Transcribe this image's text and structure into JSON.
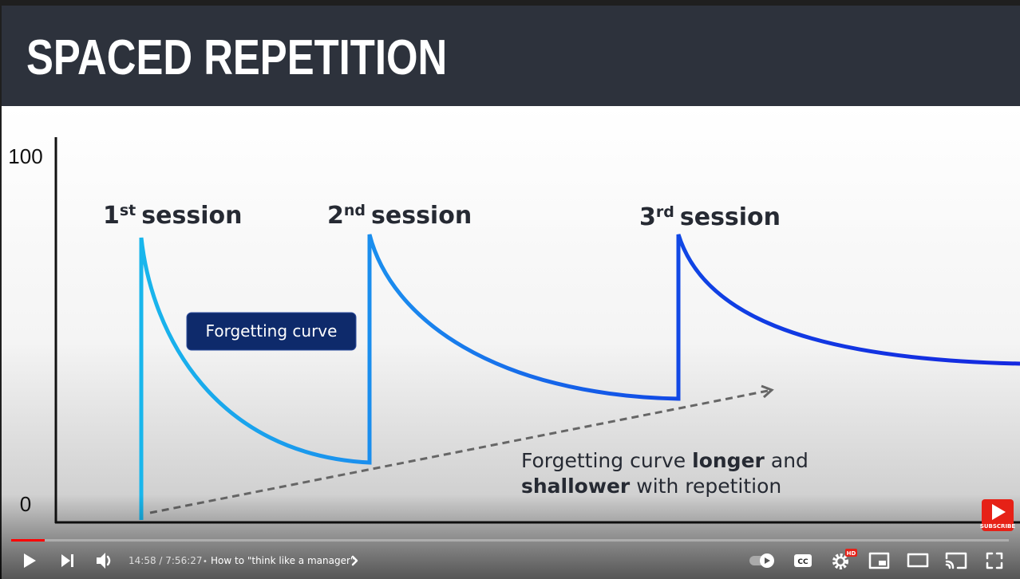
{
  "slide": {
    "title": "SPACED REPETITION",
    "axis": {
      "top": "100",
      "bottom": "0"
    },
    "sessions": [
      {
        "number": "1",
        "suffix": "st",
        "word": "session"
      },
      {
        "number": "2",
        "suffix": "nd",
        "word": "session"
      },
      {
        "number": "3",
        "suffix": "rd",
        "word": "session"
      }
    ],
    "callout": "Forgetting curve",
    "note": {
      "line1": [
        "Forgetting curve",
        "longer",
        "and"
      ],
      "line2": [
        "shallower",
        "with repetition"
      ]
    }
  },
  "player": {
    "time": "14:58 / 7:56:27",
    "separator": "•",
    "chapter": "How to \"think like a manager\"",
    "subscribe": "SUBSCRIBE",
    "quality": "HD"
  }
}
